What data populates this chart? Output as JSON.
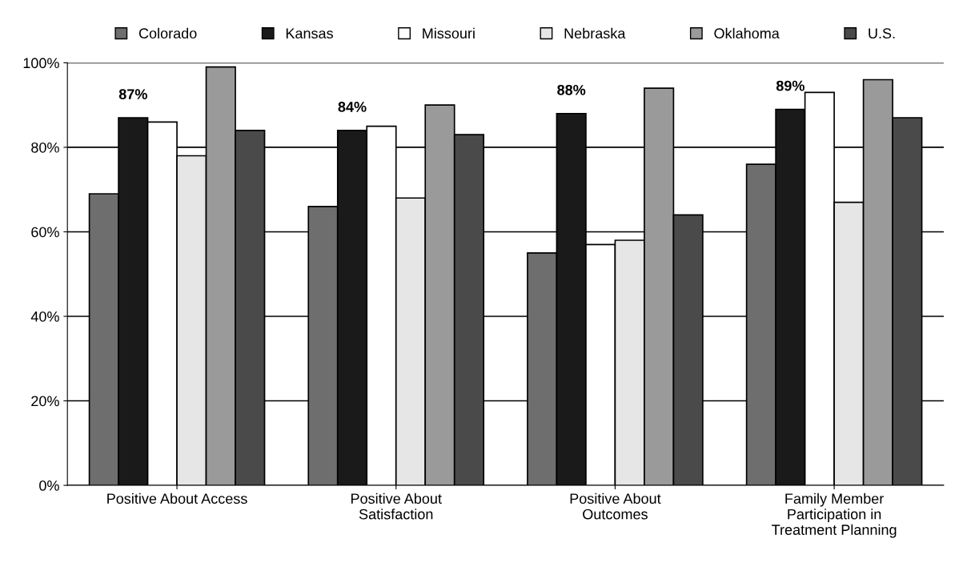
{
  "chart_data": {
    "type": "bar",
    "categories": [
      "Positive About Access",
      "Positive About\nSatisfaction",
      "Positive About\nOutcomes",
      "Family Member\nParticipation in\nTreatment Planning"
    ],
    "series": [
      {
        "name": "Colorado",
        "color": "#6e6e6e",
        "values": [
          69,
          66,
          55,
          76
        ]
      },
      {
        "name": "Kansas",
        "color": "#1a1a1a",
        "values": [
          87,
          84,
          88,
          89
        ],
        "value_labels": [
          "87%",
          "84%",
          "88%",
          "89%"
        ]
      },
      {
        "name": "Missouri",
        "color": "#ffffff",
        "values": [
          86,
          85,
          57,
          93
        ]
      },
      {
        "name": "Nebraska",
        "color": "#e6e6e6",
        "values": [
          78,
          68,
          58,
          67
        ]
      },
      {
        "name": "Oklahoma",
        "color": "#9a9a9a",
        "values": [
          99,
          90,
          94,
          96
        ]
      },
      {
        "name": "U.S.",
        "color": "#4a4a4a",
        "values": [
          84,
          83,
          64,
          87
        ]
      }
    ],
    "ylim": [
      0,
      100
    ],
    "yticks": [
      {
        "value": 0,
        "label": "0%"
      },
      {
        "value": 20,
        "label": "20%"
      },
      {
        "value": 40,
        "label": "40%"
      },
      {
        "value": 60,
        "label": "60%"
      },
      {
        "value": 80,
        "label": "80%"
      },
      {
        "value": 100,
        "label": "100%"
      }
    ],
    "grid": "y",
    "legend": "top"
  }
}
